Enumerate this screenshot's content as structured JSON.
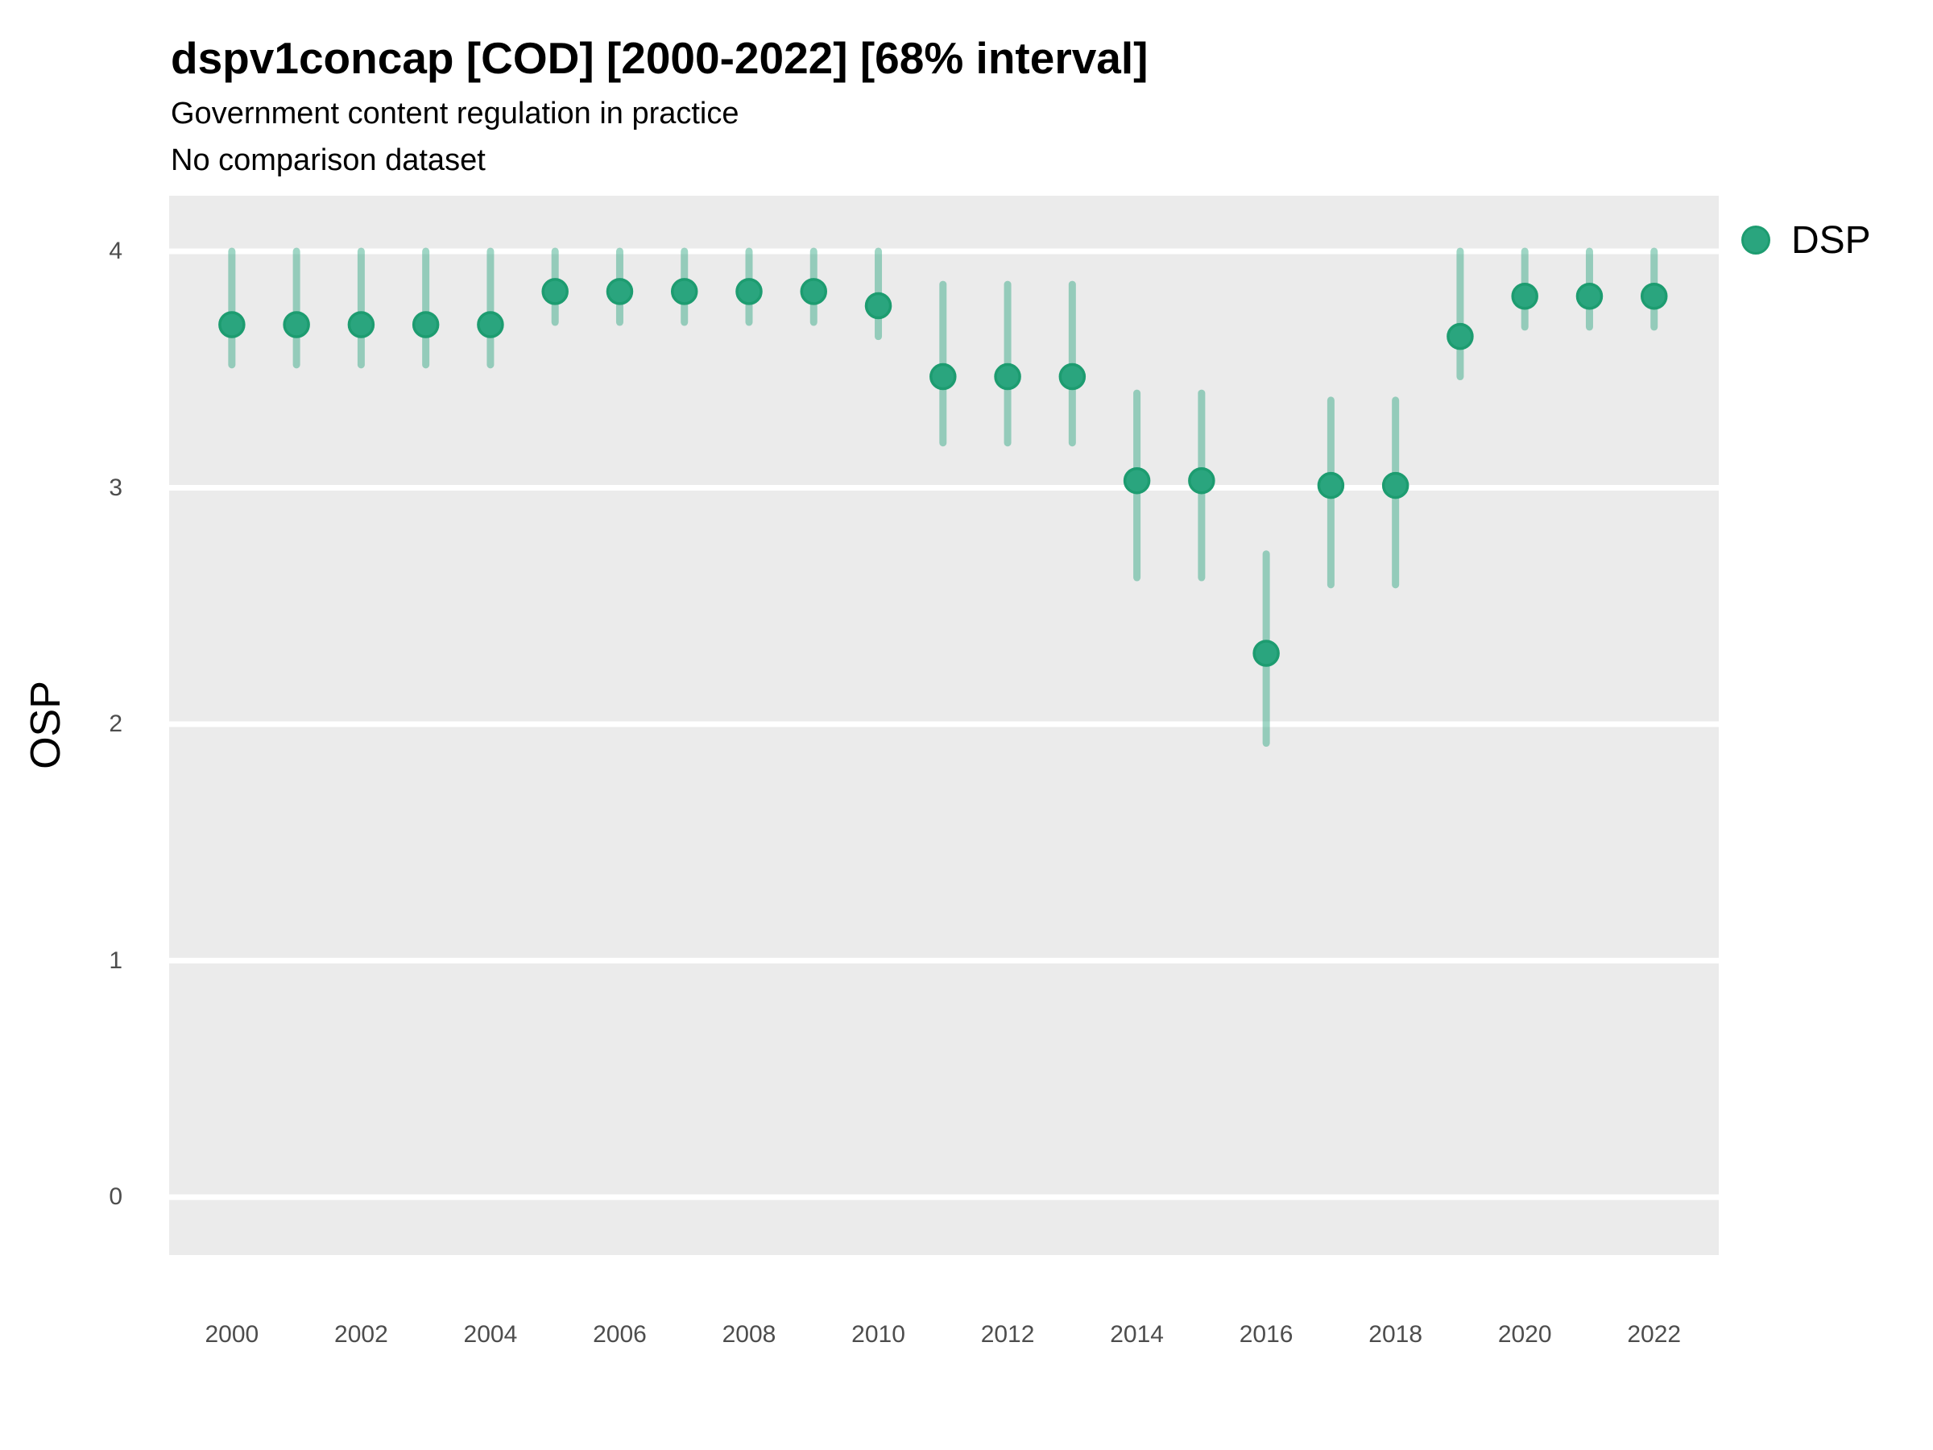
{
  "header": {
    "title": "dspv1concap [COD] [2000-2022] [68% interval]",
    "subtitle": "Government content regulation in practice",
    "dataset_note": "No comparison dataset"
  },
  "legend": {
    "label": "DSP",
    "marker": "circle-icon"
  },
  "colors": {
    "point_fill": "#2aa57e",
    "point_stroke": "#1d9c70",
    "interval": "#2aa57e",
    "interval_opacity": 0.45,
    "panel_bg": "#ebebeb",
    "grid": "#ffffff",
    "tick_text": "#4d4d4d",
    "text": "#000000"
  },
  "chart_data": {
    "type": "pointrange",
    "title": "dspv1concap [COD] [2000-2022] [68% interval]",
    "subtitle": "Government content regulation in practice",
    "note": "No comparison dataset",
    "interval_label": "68% interval",
    "xlabel": "",
    "ylabel": "OSP",
    "x": [
      2000,
      2001,
      2002,
      2003,
      2004,
      2005,
      2006,
      2007,
      2008,
      2009,
      2010,
      2011,
      2012,
      2013,
      2014,
      2015,
      2016,
      2017,
      2018,
      2019,
      2020,
      2021,
      2022
    ],
    "series": [
      {
        "name": "DSP",
        "values": [
          3.69,
          3.69,
          3.69,
          3.69,
          3.69,
          3.83,
          3.83,
          3.83,
          3.83,
          3.83,
          3.77,
          3.47,
          3.47,
          3.47,
          3.03,
          3.03,
          2.3,
          3.01,
          3.01,
          3.64,
          3.81,
          3.81,
          3.81
        ],
        "lower": [
          3.52,
          3.52,
          3.52,
          3.52,
          3.52,
          3.7,
          3.7,
          3.7,
          3.7,
          3.7,
          3.64,
          3.19,
          3.19,
          3.19,
          2.62,
          2.62,
          1.92,
          2.59,
          2.59,
          3.47,
          3.68,
          3.68,
          3.68
        ],
        "upper": [
          4.0,
          4.0,
          4.0,
          4.0,
          4.0,
          4.0,
          4.0,
          4.0,
          4.0,
          4.0,
          4.0,
          3.86,
          3.86,
          3.86,
          3.4,
          3.4,
          2.72,
          3.37,
          3.37,
          4.0,
          4.0,
          4.0,
          4.0
        ]
      }
    ],
    "xticks": [
      2000,
      2002,
      2004,
      2006,
      2008,
      2010,
      2012,
      2014,
      2016,
      2018,
      2020,
      2022
    ],
    "yticks": [
      0,
      1,
      2,
      3,
      4
    ],
    "xlim": [
      1999.03,
      2023.0
    ],
    "ylim": [
      -0.245,
      4.235
    ],
    "grid": "horizontal-major-white",
    "legend_position": "right-top"
  }
}
